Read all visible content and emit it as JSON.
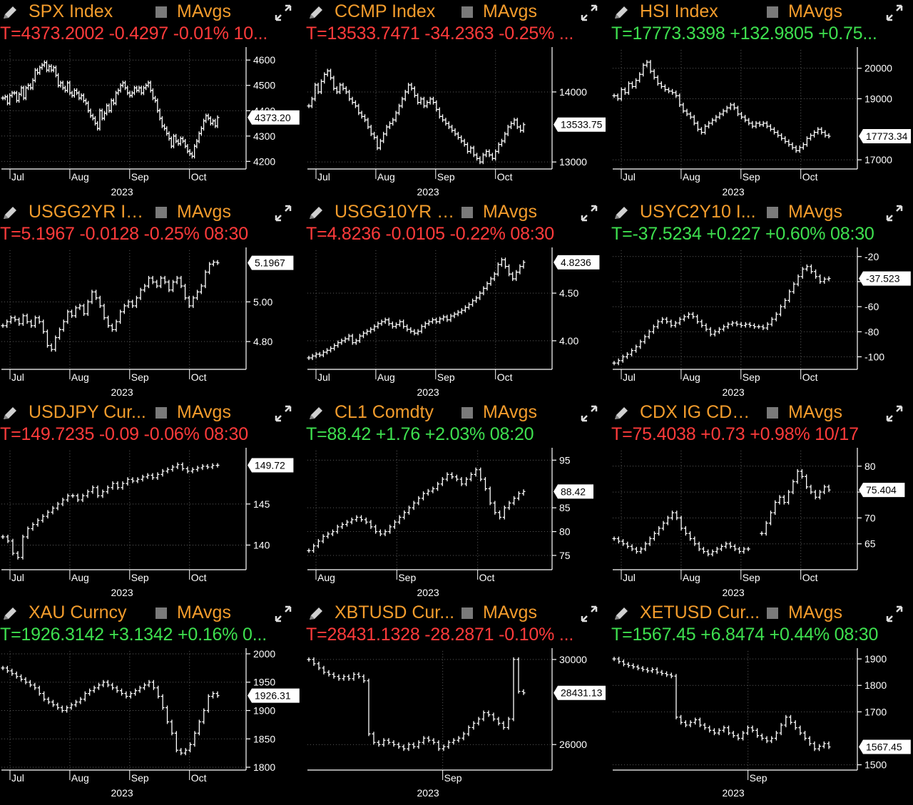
{
  "colors": {
    "ticker": "#f39c2c",
    "up": "#3ee04f",
    "down": "#ff3b3b",
    "grid": "#6a6a6a",
    "bar": "#ffffff"
  },
  "icons": {
    "pencil": "pencil-icon",
    "expand": "expand-icon",
    "checkbox": "mavgs-checkbox-icon"
  },
  "panels": [
    {
      "ticker": "SPX Index",
      "mavgs": "MAvgs",
      "quote": "T=4373.2002 -0.4297 -0.01% 10...",
      "dir": "down",
      "cur_label": "4373.20",
      "chart_data": {
        "type": "bar",
        "x_labels": [
          "Jul",
          "Aug",
          "Sep",
          "Oct"
        ],
        "year": "2023",
        "y_ticks": [
          "4600",
          "4500",
          "4400",
          "4300",
          "4200"
        ],
        "y_tick_values": [
          4600,
          4500,
          4400,
          4300,
          4200
        ],
        "ylim": [
          4170,
          4640
        ],
        "current": 4373.2,
        "values": [
          4450,
          4455,
          4430,
          4460,
          4470,
          4470,
          4440,
          4465,
          4490,
          4450,
          4490,
          4500,
          4490,
          4520,
          4560,
          4550,
          4570,
          4580,
          4590,
          4560,
          4575,
          4560,
          4570,
          4540,
          4500,
          4510,
          4490,
          4480,
          4510,
          4470,
          4460,
          4480,
          4470,
          4450,
          4460,
          4440,
          4430,
          4400,
          4380,
          4370,
          4350,
          4330,
          4400,
          4370,
          4390,
          4420,
          4400,
          4440,
          4430,
          4470,
          4480,
          4500,
          4510,
          4490,
          4470,
          4460,
          4470,
          4490,
          4480,
          4490,
          4470,
          4490,
          4500,
          4510,
          4480,
          4450,
          4440,
          4400,
          4370,
          4340,
          4330,
          4310,
          4290,
          4260,
          4300,
          4280,
          4270,
          4290,
          4280,
          4260,
          4240,
          4230,
          4220,
          4260,
          4280,
          4310,
          4330,
          4360,
          4380,
          4370,
          4350,
          4360,
          4340,
          4373
        ]
      }
    },
    {
      "ticker": "CCMP Index",
      "mavgs": "MAvgs",
      "quote": "T=13533.7471 -34.2363 -0.25% ...",
      "dir": "down",
      "cur_label": "13533.75",
      "chart_data": {
        "type": "bar",
        "x_labels": [
          "Jul",
          "Aug",
          "Sep",
          "Oct"
        ],
        "year": "2023",
        "y_ticks": [
          "14000",
          "13000"
        ],
        "y_tick_values": [
          14000,
          13000
        ],
        "ylim": [
          12900,
          14600
        ],
        "current": 13533.75,
        "values": [
          13800,
          13900,
          14100,
          14000,
          14150,
          14250,
          14300,
          14200,
          14050,
          14000,
          14100,
          14050,
          14000,
          13900,
          13850,
          13800,
          13700,
          13650,
          13600,
          13500,
          13400,
          13350,
          13200,
          13300,
          13400,
          13500,
          13550,
          13600,
          13700,
          13800,
          13900,
          14000,
          14100,
          14050,
          13950,
          13850,
          13900,
          13800,
          13850,
          13900,
          13850,
          13750,
          13650,
          13600,
          13550,
          13500,
          13450,
          13400,
          13350,
          13300,
          13250,
          13150,
          13200,
          13100,
          13050,
          13000,
          13100,
          13150,
          13100,
          13050,
          13150,
          13250,
          13300,
          13400,
          13500,
          13550,
          13600,
          13500,
          13450,
          13533
        ]
      }
    },
    {
      "ticker": "HSI Index",
      "mavgs": "MAvgs",
      "quote": "T=17773.3398 +132.9805 +0.75...",
      "dir": "up",
      "cur_label": "17773.34",
      "chart_data": {
        "type": "bar",
        "x_labels": [
          "Jul",
          "Aug",
          "Sep",
          "Oct"
        ],
        "year": "2023",
        "y_ticks": [
          "20000",
          "19000",
          "17000"
        ],
        "y_tick_values": [
          20000,
          19000,
          17000
        ],
        "ylim": [
          16700,
          20600
        ],
        "current": 17773.34,
        "values": [
          19100,
          19000,
          19300,
          19200,
          19500,
          19400,
          19600,
          19800,
          20100,
          20200,
          19900,
          19700,
          19500,
          19400,
          19300,
          19250,
          19200,
          19100,
          18800,
          18600,
          18500,
          18400,
          18200,
          18000,
          17900,
          18100,
          18200,
          18300,
          18400,
          18500,
          18600,
          18700,
          18800,
          18700,
          18500,
          18400,
          18300,
          18200,
          18100,
          18200,
          18150,
          18200,
          18100,
          18000,
          17900,
          17800,
          17700,
          17600,
          17500,
          17400,
          17300,
          17400,
          17500,
          17700,
          17800,
          17900,
          18000,
          17900,
          17800,
          17773
        ]
      }
    },
    {
      "ticker": "USGG2YR In...",
      "mavgs": "MAvgs",
      "quote": "T=5.1967 -0.0128 -0.25% 08:30",
      "dir": "down",
      "cur_label": "5.1967",
      "chart_data": {
        "type": "bar",
        "x_labels": [
          "Jul",
          "Aug",
          "Sep",
          "Oct"
        ],
        "year": "2023",
        "y_ticks": [
          "5.00",
          "4.80"
        ],
        "y_tick_values": [
          5.0,
          4.8
        ],
        "ylim": [
          4.66,
          5.26
        ],
        "current": 5.1967,
        "values": [
          4.88,
          4.9,
          4.92,
          4.91,
          4.89,
          4.93,
          4.9,
          4.88,
          4.92,
          4.9,
          4.85,
          4.78,
          4.76,
          4.82,
          4.86,
          4.9,
          4.95,
          4.93,
          4.97,
          4.98,
          4.94,
          5.0,
          5.05,
          5.02,
          4.98,
          4.92,
          4.88,
          4.86,
          4.9,
          4.95,
          4.98,
          5.0,
          4.98,
          5.02,
          5.06,
          5.08,
          5.12,
          5.1,
          5.08,
          5.12,
          5.1,
          5.06,
          5.1,
          5.12,
          5.08,
          5.02,
          4.98,
          5.02,
          5.05,
          5.08,
          5.15,
          5.19,
          5.2,
          5.1967
        ]
      }
    },
    {
      "ticker": "USGG10YR I...",
      "mavgs": "MAvgs",
      "quote": "T=4.8236 -0.0105 -0.22% 08:30",
      "dir": "down",
      "cur_label": "4.8236",
      "chart_data": {
        "type": "bar",
        "x_labels": [
          "Jul",
          "Aug",
          "Sep",
          "Oct"
        ],
        "year": "2023",
        "y_ticks": [
          "4.50",
          "4.00"
        ],
        "y_tick_values": [
          4.5,
          4.0
        ],
        "ylim": [
          3.7,
          4.95
        ],
        "current": 4.8236,
        "values": [
          3.82,
          3.84,
          3.86,
          3.85,
          3.88,
          3.9,
          3.92,
          3.95,
          3.98,
          4.0,
          4.02,
          4.05,
          3.98,
          4.0,
          4.05,
          4.08,
          4.1,
          4.12,
          4.15,
          4.18,
          4.2,
          4.22,
          4.18,
          4.15,
          4.17,
          4.2,
          4.15,
          4.12,
          4.1,
          4.08,
          4.1,
          4.15,
          4.18,
          4.2,
          4.22,
          4.2,
          4.23,
          4.25,
          4.22,
          4.26,
          4.28,
          4.3,
          4.32,
          4.35,
          4.38,
          4.42,
          4.45,
          4.5,
          4.55,
          4.6,
          4.65,
          4.7,
          4.8,
          4.85,
          4.78,
          4.7,
          4.65,
          4.72,
          4.78,
          4.8236
        ]
      }
    },
    {
      "ticker": "USYC2Y10 I...",
      "mavgs": "MAvgs",
      "quote": "T=-37.5234 +0.227 +0.60% 08:30",
      "dir": "up",
      "cur_label": "-37.523",
      "chart_data": {
        "type": "bar",
        "x_labels": [
          "Jul",
          "Aug",
          "Sep",
          "Oct"
        ],
        "year": "2023",
        "y_ticks": [
          "-20",
          "-40",
          "-60",
          "-80",
          "-100"
        ],
        "y_tick_values": [
          -20,
          -40,
          -60,
          -80,
          -100
        ],
        "ylim": [
          -110,
          -15
        ],
        "current": -37.523,
        "values": [
          -105,
          -103,
          -100,
          -98,
          -95,
          -92,
          -88,
          -84,
          -80,
          -76,
          -72,
          -70,
          -72,
          -75,
          -73,
          -70,
          -68,
          -66,
          -68,
          -72,
          -75,
          -78,
          -82,
          -80,
          -78,
          -76,
          -74,
          -73,
          -74,
          -75,
          -74,
          -75,
          -76,
          -76,
          -77,
          -74,
          -70,
          -66,
          -60,
          -55,
          -48,
          -42,
          -36,
          -30,
          -28,
          -32,
          -36,
          -40,
          -38,
          -37.5
        ]
      }
    },
    {
      "ticker": "USDJPY Cur...",
      "mavgs": "MAvgs",
      "quote": "T=149.7235 -0.09 -0.06% 08:30",
      "dir": "down",
      "cur_label": "149.72",
      "chart_data": {
        "type": "bar",
        "x_labels": [
          "Jul",
          "Aug",
          "Sep",
          "Oct"
        ],
        "year": "2023",
        "y_ticks": [
          "145",
          "140"
        ],
        "y_tick_values": [
          145,
          140
        ],
        "ylim": [
          137,
          151.5
        ],
        "current": 149.72,
        "values": [
          141,
          140.5,
          139,
          138.5,
          141,
          142,
          142.5,
          143,
          143.5,
          144,
          144.5,
          145,
          145.5,
          146,
          146,
          145.5,
          146,
          146.5,
          147,
          146,
          146.5,
          147,
          147.5,
          147,
          147.5,
          148,
          147.8,
          148,
          148.3,
          148.5,
          148.2,
          148.6,
          149,
          149.2,
          149.5,
          149.8,
          149.3,
          149,
          149.2,
          149.4,
          149.6,
          149.5,
          149.7,
          149.72
        ]
      }
    },
    {
      "ticker": "CL1 Comdty",
      "mavgs": "MAvgs",
      "quote": "T=88.42 +1.76 +2.03% 08:20",
      "dir": "up",
      "cur_label": "88.42",
      "chart_data": {
        "type": "bar",
        "x_labels": [
          "Aug",
          "Sep",
          "Oct"
        ],
        "year": "2023",
        "y_ticks": [
          "95",
          "85",
          "80",
          "75"
        ],
        "y_tick_values": [
          95,
          85,
          80,
          75
        ],
        "ylim": [
          72,
          97
        ],
        "current": 88.42,
        "values": [
          76,
          77,
          78,
          79,
          79.5,
          80,
          81,
          81.5,
          82,
          82.5,
          83,
          82.5,
          82,
          81,
          80,
          79.5,
          80,
          81,
          82,
          83,
          84,
          85,
          86,
          87,
          88,
          88.5,
          89,
          90,
          91,
          92,
          91.5,
          91,
          90,
          91,
          92,
          93,
          91,
          89,
          86,
          84,
          83,
          85,
          86,
          87,
          88,
          88.42
        ]
      }
    },
    {
      "ticker": "CDX IG CDSI...",
      "mavgs": "MAvgs",
      "quote": "T=75.4038 +0.73 +0.98% 10/17",
      "dir": "down",
      "cur_label": "75.404",
      "chart_data": {
        "type": "bar",
        "x_labels": [
          "Jul",
          "Aug",
          "Sep",
          "Oct"
        ],
        "year": "2023",
        "y_ticks": [
          "80",
          "75",
          "70",
          "65"
        ],
        "y_tick_values": [
          80,
          75,
          70,
          65
        ],
        "ylim": [
          60,
          83
        ],
        "current": 75.404,
        "values": [
          66,
          65.5,
          65,
          64.5,
          64,
          63.5,
          64,
          65,
          66,
          67,
          68,
          69,
          70,
          71,
          70,
          68,
          67,
          66,
          65,
          64,
          63.5,
          63,
          63.5,
          64,
          64.5,
          65,
          64.5,
          64,
          63.5,
          64,
          64,
          null,
          null,
          67,
          69,
          71,
          73,
          74,
          73,
          75,
          77,
          79,
          78,
          76,
          75,
          74,
          75,
          76,
          75.4
        ]
      }
    },
    {
      "ticker": "XAU Curncy",
      "mavgs": "MAvgs",
      "quote": "T=1926.3142 +3.1342 +0.16% 0...",
      "dir": "up",
      "cur_label": "1926.31",
      "chart_data": {
        "type": "bar",
        "x_labels": [
          "Jul",
          "Aug",
          "Sep",
          "Oct"
        ],
        "year": "2023",
        "y_ticks": [
          "2000",
          "1950",
          "1900",
          "1850",
          "1800"
        ],
        "y_tick_values": [
          2000,
          1950,
          1900,
          1850,
          1800
        ],
        "ylim": [
          1795,
          2005
        ],
        "current": 1926.31,
        "values": [
          1975,
          1970,
          1965,
          1960,
          1955,
          1950,
          1945,
          1940,
          1930,
          1920,
          1915,
          1910,
          1905,
          1900,
          1905,
          1910,
          1915,
          1920,
          1930,
          1935,
          1940,
          1945,
          1950,
          1945,
          1940,
          1935,
          1930,
          1925,
          1930,
          1935,
          1940,
          1945,
          1950,
          1940,
          1925,
          1905,
          1880,
          1860,
          1830,
          1825,
          1830,
          1840,
          1860,
          1880,
          1900,
          1925,
          1930,
          1926.31
        ]
      }
    },
    {
      "ticker": "XBTUSD Cur...",
      "mavgs": "MAvgs",
      "quote": "T=28431.1328 -28.2871 -0.10% ...",
      "dir": "down",
      "cur_label": "28431.13",
      "chart_data": {
        "type": "bar",
        "x_labels": [
          "Sep"
        ],
        "year": "2023",
        "y_ticks": [
          "30000",
          "26000"
        ],
        "y_tick_values": [
          30000,
          26000
        ],
        "ylim": [
          24800,
          30400
        ],
        "current": 28431.13,
        "values": [
          30000,
          29800,
          29600,
          29400,
          29300,
          29200,
          29100,
          29200,
          29100,
          29300,
          29200,
          29000,
          26500,
          26100,
          26000,
          26200,
          26100,
          26000,
          25900,
          25800,
          26000,
          25900,
          26100,
          26300,
          26200,
          26100,
          25800,
          25900,
          26100,
          26200,
          26300,
          26500,
          26800,
          27000,
          27200,
          27500,
          27400,
          27200,
          27000,
          26800,
          27200,
          30000,
          28500,
          28431
        ]
      }
    },
    {
      "ticker": "XETUSD Cur...",
      "mavgs": "MAvgs",
      "quote": "T=1567.45 +6.8474 +0.44% 08:30",
      "dir": "up",
      "cur_label": "1567.45",
      "chart_data": {
        "type": "bar",
        "x_labels": [
          "Sep"
        ],
        "year": "2023",
        "y_ticks": [
          "1900",
          "1800",
          "1700",
          "1500"
        ],
        "y_tick_values": [
          1900,
          1800,
          1700,
          1500
        ],
        "ylim": [
          1480,
          1930
        ],
        "current": 1567.45,
        "values": [
          1900,
          1890,
          1880,
          1875,
          1870,
          1865,
          1860,
          1855,
          1860,
          1850,
          1845,
          1840,
          1835,
          1680,
          1660,
          1650,
          1660,
          1670,
          1650,
          1640,
          1630,
          1620,
          1630,
          1640,
          1620,
          1610,
          1600,
          1620,
          1640,
          1630,
          1610,
          1600,
          1590,
          1600,
          1620,
          1650,
          1680,
          1660,
          1640,
          1620,
          1600,
          1580,
          1560,
          1570,
          1580,
          1567.45
        ]
      }
    }
  ]
}
